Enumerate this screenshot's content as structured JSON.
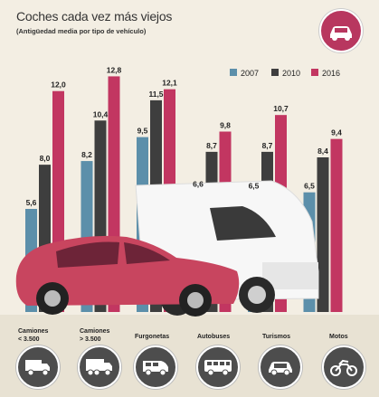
{
  "header": {
    "title": "Coches cada vez más viejos",
    "subtitle": "(Antigüedad media por tipo de vehículo)",
    "badge_icon": "car-icon"
  },
  "colors": {
    "2007": "#5c8faa",
    "2010": "#3e3e3e",
    "2016": "#c23661",
    "background": "#f3eee3",
    "icon_bg": "#4d4d4d"
  },
  "chart_data": {
    "type": "bar",
    "title": "Coches cada vez más viejos",
    "subtitle": "(Antigüedad media por tipo de vehículo)",
    "categories": [
      "Camiones < 3.500",
      "Camiones > 3.500",
      "Furgonetas",
      "Autobuses",
      "Turismos",
      "Motos"
    ],
    "series": [
      {
        "name": "2007",
        "values": [
          5.6,
          8.2,
          9.5,
          6.6,
          6.5,
          6.5
        ]
      },
      {
        "name": "2010",
        "values": [
          8.0,
          10.4,
          11.5,
          8.7,
          8.7,
          8.4
        ]
      },
      {
        "name": "2016",
        "values": [
          12.0,
          12.8,
          12.1,
          9.8,
          10.7,
          9.4
        ]
      }
    ],
    "value_labels": [
      [
        "5,6",
        "8,0",
        "12,0"
      ],
      [
        "8,2",
        "10,4",
        "12,8"
      ],
      [
        "9,5",
        "11,5",
        "12,1"
      ],
      [
        "6,6",
        "8,7",
        "9,8"
      ],
      [
        "6,5",
        "8,7",
        "10,7"
      ],
      [
        "6,5",
        "8,4",
        "9,4"
      ]
    ],
    "legend": [
      "2007",
      "2010",
      "2016"
    ],
    "legend_position": "top-right",
    "ylim": [
      0,
      14
    ],
    "grid": false
  },
  "footer": {
    "vehicles": [
      {
        "label_line1": "Camiones",
        "label_line2": "< 3.500",
        "icon": "truck-small-icon"
      },
      {
        "label_line1": "Camiones",
        "label_line2": "> 3.500",
        "icon": "truck-large-icon"
      },
      {
        "label_line1": "Furgonetas",
        "label_line2": "",
        "icon": "van-icon"
      },
      {
        "label_line1": "Autobuses",
        "label_line2": "",
        "icon": "bus-icon"
      },
      {
        "label_line1": "Turismos",
        "label_line2": "",
        "icon": "car-icon"
      },
      {
        "label_line1": "Motos",
        "label_line2": "",
        "icon": "motorcycle-icon"
      }
    ]
  }
}
